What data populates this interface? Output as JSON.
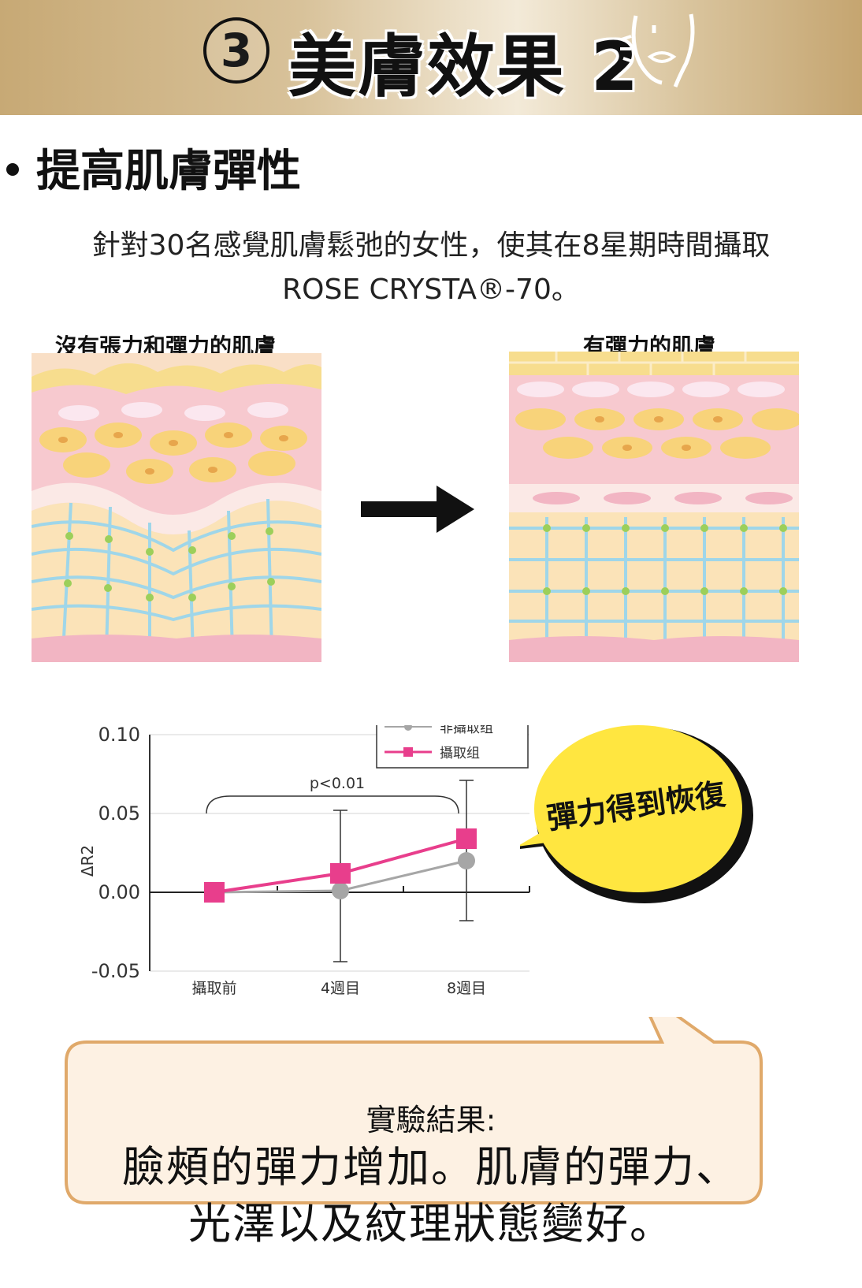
{
  "banner": {
    "number": "3",
    "title": "美膚效果 2",
    "icon": "face-outline-icon"
  },
  "section": {
    "title": "提高肌膚彈性",
    "desc_line1": "針對30名感覺肌膚鬆弛的女性，使其在8星期時間攝取",
    "desc_line2": "ROSE CRYSTA®-70。"
  },
  "illustration": {
    "before_label": "沒有張力和彈力的肌膚",
    "after_label": "有彈力的肌膚",
    "arrow_icon": "right-arrow-icon"
  },
  "chart_data": {
    "type": "line",
    "categories": [
      "攝取前",
      "4週目",
      "8週目"
    ],
    "series": [
      {
        "name": "非攝取组",
        "values": [
          0.0,
          0.001,
          0.02
        ],
        "color": "#a6a6a6",
        "marker": "circle"
      },
      {
        "name": "攝取组",
        "values": [
          0.0,
          0.012,
          0.034
        ],
        "color": "#e83e8c",
        "marker": "square",
        "error_low": [
          null,
          -0.044,
          -0.018
        ],
        "error_high": [
          null,
          0.052,
          0.071
        ]
      }
    ],
    "ylabel": "ΔR2",
    "ylim": [
      -0.05,
      0.1
    ],
    "yticks": [
      "0.10",
      "0.05",
      "0.00",
      "-0.05"
    ],
    "ytick_values": [
      0.1,
      0.05,
      0.0,
      -0.05
    ],
    "annotation": "p<0.01",
    "legend_position": "top-right",
    "grid": true
  },
  "callout": {
    "text": "彈力得到恢復",
    "color": "#ffe640"
  },
  "result": {
    "heading": "實驗結果:",
    "line1": "臉頰的彈力增加。肌膚的彈力、",
    "line2": "光澤以及紋理狀態變好。",
    "color": "#fdf1e3"
  }
}
